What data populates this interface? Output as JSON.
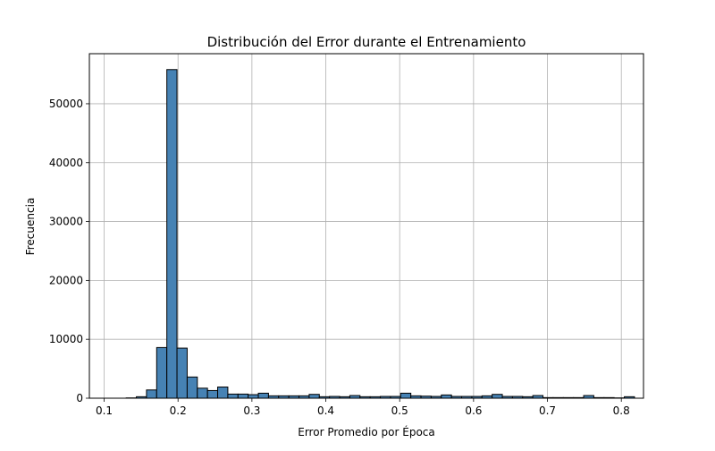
{
  "chart_data": {
    "type": "bar",
    "title": "Distribución del Error durante el Entrenamiento",
    "xlabel": "Error Promedio por Época",
    "ylabel": "Frecuencia",
    "xlim": [
      0.08,
      0.83
    ],
    "ylim": [
      0,
      58500
    ],
    "xticks": [
      0.1,
      0.2,
      0.3,
      0.4,
      0.5,
      0.6,
      0.7,
      0.8
    ],
    "yticks": [
      0,
      10000,
      20000,
      30000,
      40000,
      50000
    ],
    "grid": true,
    "bar_color": "#4682b4",
    "edge_color": "#000000",
    "bins": {
      "start": 0.1298,
      "width": 0.01376,
      "counts": [
        50,
        250,
        1400,
        8600,
        55800,
        8500,
        3600,
        1700,
        1300,
        1900,
        700,
        700,
        600,
        850,
        400,
        400,
        400,
        400,
        650,
        250,
        300,
        250,
        450,
        250,
        250,
        300,
        300,
        850,
        400,
        350,
        300,
        550,
        300,
        300,
        300,
        400,
        650,
        300,
        300,
        250,
        450,
        100,
        100,
        100,
        100,
        450,
        100,
        100,
        50,
        250
      ]
    }
  }
}
